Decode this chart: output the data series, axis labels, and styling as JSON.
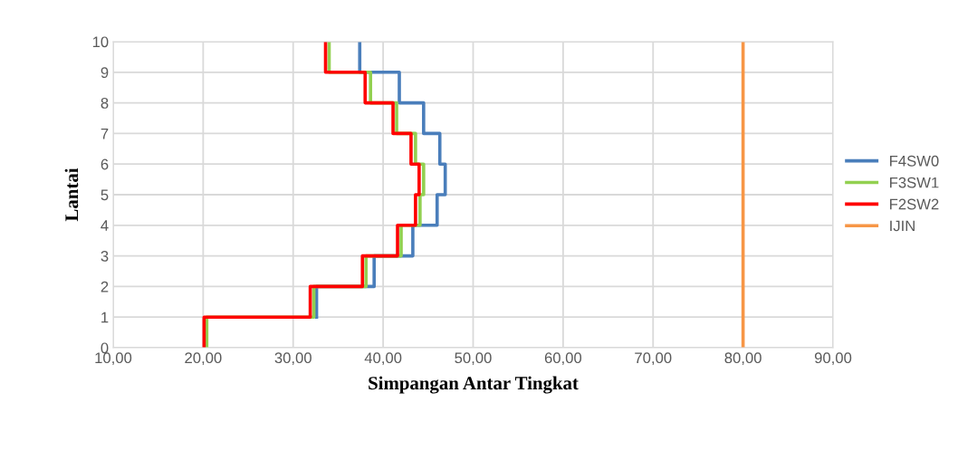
{
  "chart_data": {
    "type": "line",
    "xlabel": "Simpangan Antar Tingkat",
    "ylabel": "Lantai",
    "xlim": [
      10,
      90
    ],
    "xticks": [
      {
        "value": 10,
        "label": "10,00"
      },
      {
        "value": 20,
        "label": "20,00"
      },
      {
        "value": 30,
        "label": "30,00"
      },
      {
        "value": 40,
        "label": "40,00"
      },
      {
        "value": 50,
        "label": "50,00"
      },
      {
        "value": 60,
        "label": "60,00"
      },
      {
        "value": 70,
        "label": "70,00"
      },
      {
        "value": 80,
        "label": "80,00"
      },
      {
        "value": 90,
        "label": "90,00"
      }
    ],
    "ylim": [
      0,
      10
    ],
    "yticks": [
      0,
      1,
      2,
      3,
      4,
      5,
      6,
      7,
      8,
      9,
      10
    ],
    "grid": true,
    "legend": "right",
    "line_style": "solid",
    "marker": "none",
    "series": [
      {
        "name": "F4SW0",
        "color": "#4a7ebb",
        "x": [
          null,
          null,
          32.6,
          32.6,
          39.0,
          39.0,
          43.3,
          43.3,
          46.0,
          46.0,
          46.9,
          46.9,
          46.3,
          46.3,
          44.5,
          44.5,
          41.8,
          41.8,
          37.4,
          37.4
        ],
        "values": [
          null,
          null,
          1,
          2,
          2,
          3,
          3,
          4,
          4,
          5,
          5,
          6,
          6,
          7,
          7,
          8,
          8,
          9,
          9,
          10
        ]
      },
      {
        "name": "F3SW1",
        "color": "#92d050",
        "x": [
          20.4,
          20.4,
          32.3,
          32.3,
          38.1,
          38.1,
          42.0,
          42.0,
          44.1,
          44.1,
          44.5,
          44.5,
          43.6,
          43.6,
          41.5,
          41.5,
          38.6,
          38.6,
          34.0,
          34.0
        ],
        "values": [
          0,
          1,
          1,
          2,
          2,
          3,
          3,
          4,
          4,
          5,
          5,
          6,
          6,
          7,
          7,
          8,
          8,
          9,
          9,
          10
        ]
      },
      {
        "name": "F2SW2",
        "color": "#ff0000",
        "x": [
          20.1,
          20.1,
          31.9,
          31.9,
          37.7,
          37.7,
          41.6,
          41.6,
          43.6,
          43.6,
          44.0,
          44.0,
          43.1,
          43.1,
          41.1,
          41.1,
          38.0,
          38.0,
          33.6,
          33.6
        ],
        "values": [
          0,
          1,
          1,
          2,
          2,
          3,
          3,
          4,
          4,
          5,
          5,
          6,
          6,
          7,
          7,
          8,
          8,
          9,
          9,
          10
        ]
      },
      {
        "name": "IJIN",
        "color": "#f79646",
        "x": [
          80,
          80
        ],
        "values": [
          0,
          10
        ]
      }
    ]
  }
}
